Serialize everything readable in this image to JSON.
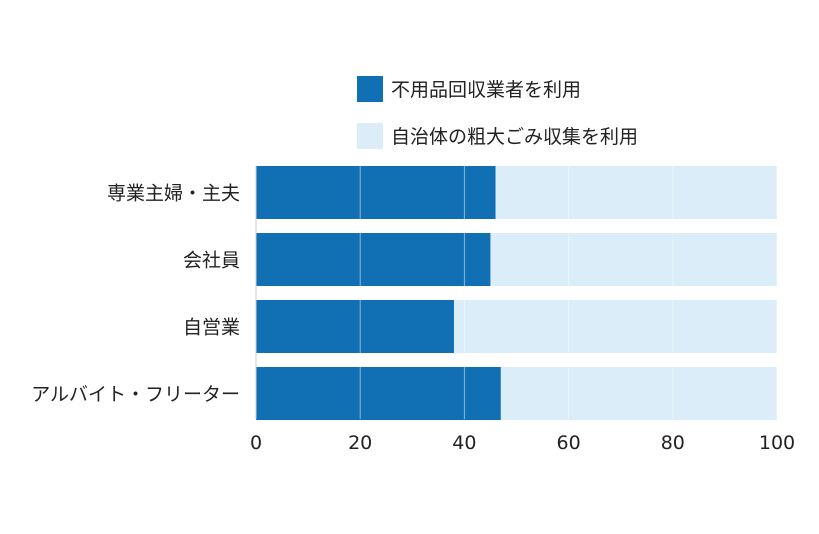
{
  "chart_data": {
    "type": "bar",
    "stacked": true,
    "orientation": "horizontal",
    "categories": [
      "専業主婦・主夫",
      "会社員",
      "自営業",
      "アルバイト・フリーター"
    ],
    "series": [
      {
        "name": "不用品回収業者を利用",
        "color": "#1170b3",
        "values": [
          46,
          45,
          38,
          47
        ]
      },
      {
        "name": "自治体の粗大ごみ収集を利用",
        "color": "#daedf8",
        "values": [
          54,
          55,
          62,
          53
        ]
      }
    ],
    "xlim": [
      0,
      100
    ],
    "xticks": [
      "0",
      "20",
      "40",
      "60",
      "80",
      "100"
    ],
    "grid": true,
    "legend": "top"
  }
}
